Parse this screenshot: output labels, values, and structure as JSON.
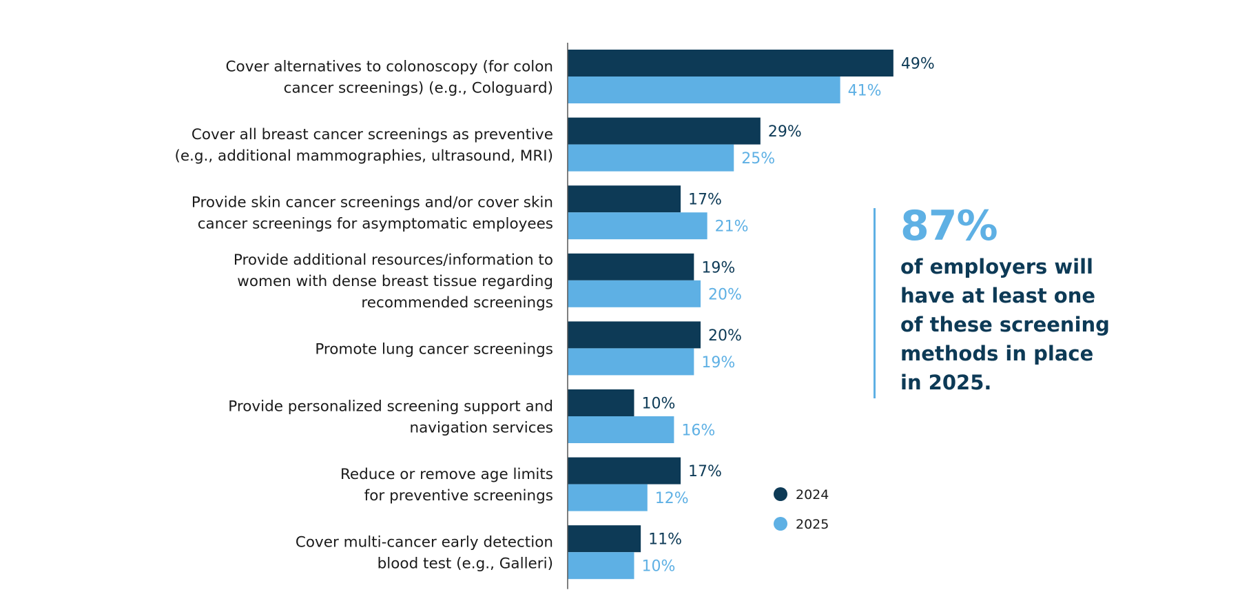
{
  "colors": {
    "series_2024": "#0d3a56",
    "series_2025": "#5eb0e4"
  },
  "callout": {
    "big": "87%",
    "lines": [
      "of employers will",
      "have at least one",
      "of these screening",
      "methods in place",
      "in 2025."
    ]
  },
  "chart_data": {
    "type": "bar",
    "orientation": "horizontal",
    "xlim": [
      0,
      50
    ],
    "grid": false,
    "legend_placement": "bottom-center",
    "categories": [
      [
        "Cover alternatives to colonoscopy (for colon",
        "cancer screenings) (e.g., Cologuard)"
      ],
      [
        "Cover all breast cancer screenings as preventive",
        "(e.g., additional mammographies, ultrasound, MRI)"
      ],
      [
        "Provide skin cancer screenings and/or cover skin",
        "cancer screenings for asymptomatic employees"
      ],
      [
        "Provide additional resources/information to",
        "women with dense breast tissue regarding",
        "recommended screenings"
      ],
      [
        "Promote lung cancer screenings"
      ],
      [
        "Provide personalized screening support and",
        "navigation services"
      ],
      [
        "Reduce or remove age limits",
        "for preventive screenings"
      ],
      [
        "Cover multi-cancer early detection",
        "blood test (e.g., Galleri)"
      ]
    ],
    "series": [
      {
        "name": "2024",
        "values": [
          49,
          29,
          17,
          19,
          20,
          10,
          17,
          11
        ],
        "labels": [
          "49%",
          "29%",
          "17%",
          "19%",
          "20%",
          "10%",
          "17%",
          "11%"
        ]
      },
      {
        "name": "2025",
        "values": [
          41,
          25,
          21,
          20,
          19,
          16,
          12,
          10
        ],
        "labels": [
          "41%",
          "25%",
          "21%",
          "20%",
          "19%",
          "16%",
          "12%",
          "10%"
        ]
      }
    ]
  }
}
